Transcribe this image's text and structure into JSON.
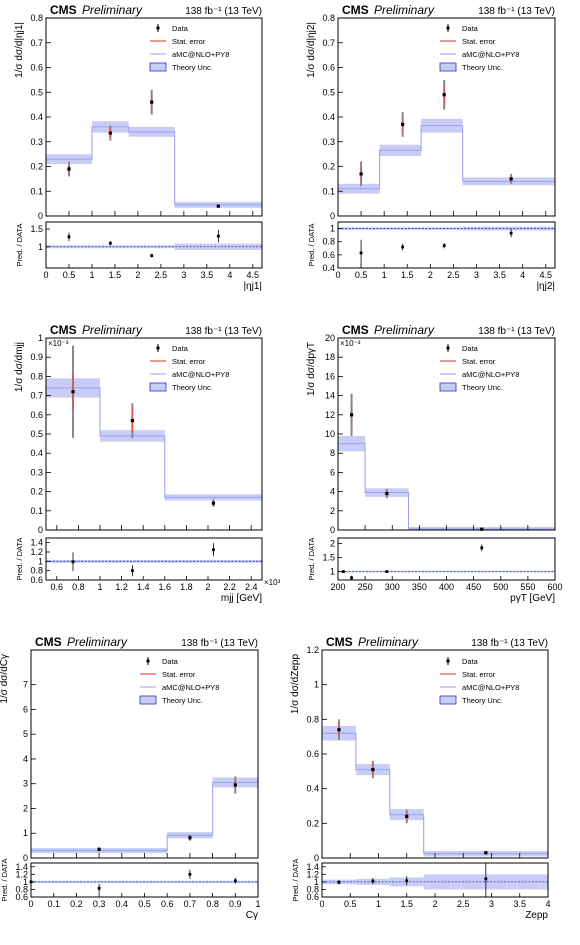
{
  "figure": {
    "header": {
      "experiment": "CMS",
      "status": "Preliminary",
      "lumi": "138 fb⁻¹ (13 TeV)"
    },
    "legend": [
      {
        "label": "Data",
        "style": "data"
      },
      {
        "label": "Stat. error",
        "style": "stat"
      },
      {
        "label": "aMC@NLO+PY8",
        "style": "mc"
      },
      {
        "label": "Theory Unc.",
        "style": "band"
      }
    ],
    "colors": {
      "mc_band": "#c9cdf5",
      "mc_line": "#9aa2ee",
      "stat": "#e05050",
      "syst": "#888888",
      "ratio_line": "#3030c0"
    }
  },
  "chart_data": [
    {
      "type": "histogram",
      "id": "eta_j1",
      "ylabel": "1/σ dσ/d|ηj1|",
      "xlabel": "|ηj1|",
      "ratio_ylabel": "Pred. / DATA",
      "xlim": [
        0,
        4.7
      ],
      "ylim": [
        0,
        0.8
      ],
      "ratio_ylim": [
        0.4,
        1.7
      ],
      "xticks": [
        "0",
        "0.5",
        "1",
        "1.5",
        "2",
        "2.5",
        "3",
        "3.5",
        "4",
        "4.5"
      ],
      "xtick_values": [
        0,
        0.5,
        1,
        1.5,
        2,
        2.5,
        3,
        3.5,
        4,
        4.5
      ],
      "yticks": [
        "0",
        "0.1",
        "0.2",
        "0.3",
        "0.4",
        "0.5",
        "0.6",
        "0.7",
        "0.8"
      ],
      "ytick_values": [
        0,
        0.1,
        0.2,
        0.3,
        0.4,
        0.5,
        0.6,
        0.7,
        0.8
      ],
      "ratio_yticks": [
        "1",
        "1.5"
      ],
      "ratio_ytick_values": [
        1,
        1.5
      ],
      "bin_edges": [
        0,
        1,
        1.8,
        2.8,
        4.7
      ],
      "mc_values": [
        0.23,
        0.36,
        0.34,
        0.045
      ],
      "mc_unc": [
        0.012,
        0.015,
        0.012,
        0.004
      ],
      "data_x": [
        0.5,
        1.4,
        2.3,
        3.75
      ],
      "data_y": [
        0.19,
        0.335,
        0.46,
        0.04
      ],
      "data_stat": [
        0.02,
        0.02,
        0.03,
        0.004
      ],
      "data_syst": [
        0.03,
        0.03,
        0.05,
        0.006
      ],
      "ratio_mc_unc": [
        0.04,
        0.04,
        0.04,
        0.09
      ],
      "ratio_x": [
        0.5,
        1.4,
        2.3,
        3.75
      ],
      "ratio_y": [
        1.28,
        1.1,
        0.75,
        1.3
      ],
      "ratio_err": [
        0.12,
        0.06,
        0.05,
        0.18
      ]
    },
    {
      "type": "histogram",
      "id": "eta_j2",
      "ylabel": "1/σ dσ/d|ηj2|",
      "xlabel": "|ηj2|",
      "ratio_ylabel": "Pred. / DATA",
      "xlim": [
        0,
        4.7
      ],
      "ylim": [
        0,
        0.8
      ],
      "ratio_ylim": [
        0.4,
        1.1
      ],
      "xticks": [
        "0",
        "0.5",
        "1",
        "1.5",
        "2",
        "2.5",
        "3",
        "3.5",
        "4",
        "4.5"
      ],
      "xtick_values": [
        0,
        0.5,
        1,
        1.5,
        2,
        2.5,
        3,
        3.5,
        4,
        4.5
      ],
      "yticks": [
        "0",
        "0.1",
        "0.2",
        "0.3",
        "0.4",
        "0.5",
        "0.6",
        "0.7",
        "0.8"
      ],
      "ytick_values": [
        0,
        0.1,
        0.2,
        0.3,
        0.4,
        0.5,
        0.6,
        0.7,
        0.8
      ],
      "ratio_yticks": [
        "0.4",
        "0.6",
        "0.8",
        "1"
      ],
      "ratio_ytick_values": [
        0.4,
        0.6,
        0.8,
        1
      ],
      "bin_edges": [
        0,
        0.9,
        1.8,
        2.7,
        4.7
      ],
      "mc_values": [
        0.11,
        0.265,
        0.365,
        0.14
      ],
      "mc_unc": [
        0.012,
        0.015,
        0.02,
        0.008
      ],
      "data_x": [
        0.5,
        1.4,
        2.3,
        3.75
      ],
      "data_y": [
        0.17,
        0.37,
        0.49,
        0.15
      ],
      "data_stat": [
        0.03,
        0.03,
        0.04,
        0.01
      ],
      "data_syst": [
        0.05,
        0.05,
        0.06,
        0.02
      ],
      "ratio_mc_unc": [
        0.02,
        0.02,
        0.02,
        0.03
      ],
      "ratio_x": [
        0.5,
        1.4,
        2.3,
        3.75
      ],
      "ratio_y": [
        0.63,
        0.72,
        0.74,
        0.93
      ],
      "ratio_err": [
        0.2,
        0.05,
        0.04,
        0.06
      ]
    },
    {
      "type": "histogram",
      "id": "mjj",
      "ylabel": "1/σ dσ/dmjj",
      "xlabel": "mjj [GeV]",
      "ratio_ylabel": "Pred. / DATA",
      "y_exponent": "×10⁻³",
      "x_exponent": "×10³",
      "xlim": [
        0.5,
        2.5
      ],
      "ylim": [
        0,
        1.0
      ],
      "ratio_ylim": [
        0.6,
        1.5
      ],
      "xticks": [
        "0.6",
        "0.8",
        "1",
        "1.2",
        "1.4",
        "1.6",
        "1.8",
        "2",
        "2.2",
        "2.4"
      ],
      "xtick_values": [
        0.6,
        0.8,
        1,
        1.2,
        1.4,
        1.6,
        1.8,
        2,
        2.2,
        2.4
      ],
      "yticks": [
        "0",
        "0.1",
        "0.2",
        "0.3",
        "0.4",
        "0.5",
        "0.6",
        "0.7",
        "0.8",
        "0.9",
        "1"
      ],
      "ytick_values": [
        0,
        0.1,
        0.2,
        0.3,
        0.4,
        0.5,
        0.6,
        0.7,
        0.8,
        0.9,
        1
      ],
      "ratio_yticks": [
        "0.6",
        "0.8",
        "1",
        "1.2",
        "1.4"
      ],
      "ratio_ytick_values": [
        0.6,
        0.8,
        1,
        1.2,
        1.4
      ],
      "bin_edges": [
        0.5,
        1.0,
        1.6,
        2.5
      ],
      "mc_values": [
        0.74,
        0.49,
        0.17
      ],
      "mc_unc": [
        0.04,
        0.02,
        0.006
      ],
      "data_x": [
        0.75,
        1.3,
        2.05
      ],
      "data_y": [
        0.72,
        0.57,
        0.14
      ],
      "data_stat": [
        0.1,
        0.06,
        0.015
      ],
      "data_syst": [
        0.24,
        0.09,
        0.02
      ],
      "ratio_mc_unc": [
        0.03,
        0.03,
        0.03
      ],
      "ratio_x": [
        0.75,
        1.3,
        2.05
      ],
      "ratio_y": [
        0.99,
        0.8,
        1.25
      ],
      "ratio_err": [
        0.2,
        0.12,
        0.14
      ]
    },
    {
      "type": "histogram",
      "id": "ptgamma",
      "ylabel": "1/σ dσ/dpγT",
      "xlabel": "pγT [GeV]",
      "ratio_ylabel": "Pred. / DATA",
      "y_exponent": "×10⁻³",
      "xlim": [
        200,
        600
      ],
      "ylim": [
        0,
        20
      ],
      "ratio_ylim": [
        0.7,
        2.2
      ],
      "xticks": [
        "200",
        "250",
        "300",
        "350",
        "400",
        "450",
        "500",
        "550",
        "600"
      ],
      "xtick_values": [
        200,
        250,
        300,
        350,
        400,
        450,
        500,
        550,
        600
      ],
      "yticks": [
        "0",
        "2",
        "4",
        "6",
        "8",
        "10",
        "12",
        "14",
        "16",
        "18",
        "20"
      ],
      "ytick_values": [
        0,
        2,
        4,
        6,
        8,
        10,
        12,
        14,
        16,
        18,
        20
      ],
      "ratio_yticks": [
        "1",
        "1.5",
        "2"
      ],
      "ratio_ytick_values": [
        1,
        1.5,
        2
      ],
      "bin_edges": [
        200,
        250,
        330,
        600
      ],
      "mc_values": [
        9.0,
        3.9,
        0.1
      ],
      "mc_unc": [
        0.6,
        0.25,
        0.02
      ],
      "data_x": [
        225,
        290,
        465
      ],
      "data_y": [
        12.0,
        3.8,
        0.08
      ],
      "data_stat": [
        1.0,
        0.3,
        0.02
      ],
      "data_syst": [
        2.2,
        0.5,
        0.03
      ],
      "ratio_mc_unc": [
        0.03,
        0.03,
        0.03
      ],
      "ratio_x": [
        210,
        225,
        290,
        465
      ],
      "ratio_y": [
        1.0,
        0.78,
        1.0,
        1.85
      ],
      "ratio_err": [
        0.05,
        0.07,
        0.05,
        0.12
      ]
    },
    {
      "type": "histogram",
      "id": "cgamma",
      "ylabel": "1/σ dσ/dCγ",
      "xlabel": "Cγ",
      "ratio_ylabel": "Pred. / DATA",
      "xlim": [
        0,
        1
      ],
      "ylim": [
        0,
        8.4
      ],
      "ratio_ylim": [
        0.6,
        1.5
      ],
      "xticks": [
        "0",
        "0.1",
        "0.2",
        "0.3",
        "0.4",
        "0.5",
        "0.6",
        "0.7",
        "0.8",
        "0.9",
        "1"
      ],
      "xtick_values": [
        0,
        0.1,
        0.2,
        0.3,
        0.4,
        0.5,
        0.6,
        0.7,
        0.8,
        0.9,
        1
      ],
      "yticks": [
        "0",
        "1",
        "2",
        "3",
        "4",
        "5",
        "6",
        "7"
      ],
      "ytick_values": [
        0,
        1,
        2,
        3,
        4,
        5,
        6,
        7
      ],
      "ratio_yticks": [
        "0.6",
        "0.8",
        "1",
        "1.2",
        "1.4"
      ],
      "ratio_ytick_values": [
        0.6,
        0.8,
        1,
        1.2,
        1.4
      ],
      "bin_edges": [
        0,
        0.6,
        0.8,
        1.0
      ],
      "mc_values": [
        0.3,
        0.92,
        3.05
      ],
      "mc_unc": [
        0.02,
        0.04,
        0.12
      ],
      "data_x": [
        0.3,
        0.7,
        0.9
      ],
      "data_y": [
        0.35,
        0.82,
        2.95
      ],
      "data_stat": [
        0.05,
        0.08,
        0.2
      ],
      "data_syst": [
        0.08,
        0.12,
        0.35
      ],
      "ratio_mc_unc": [
        0.03,
        0.03,
        0.03
      ],
      "ratio_x": [
        0,
        0.3,
        0.7,
        0.9
      ],
      "ratio_y": [
        1.0,
        0.83,
        1.2,
        1.03
      ],
      "ratio_err": [
        0.05,
        0.12,
        0.12,
        0.08
      ]
    },
    {
      "type": "histogram",
      "id": "zepp",
      "ylabel": "1/σ dσ/dZepp",
      "xlabel": "Zepp",
      "ratio_ylabel": "Pred. / DATA",
      "xlim": [
        0,
        4
      ],
      "ylim": [
        0,
        1.2
      ],
      "ratio_ylim": [
        0.6,
        1.5
      ],
      "xticks": [
        "0",
        "0.5",
        "1",
        "1.5",
        "2",
        "2.5",
        "3",
        "3.5",
        "4"
      ],
      "xtick_values": [
        0,
        0.5,
        1,
        1.5,
        2,
        2.5,
        3,
        3.5,
        4
      ],
      "yticks": [
        "0",
        "0.2",
        "0.4",
        "0.6",
        "0.8",
        "1",
        "1.2"
      ],
      "ytick_values": [
        0,
        0.2,
        0.4,
        0.6,
        0.8,
        1,
        1.2
      ],
      "ratio_yticks": [
        "0.6",
        "0.8",
        "1",
        "1.2",
        "1.4"
      ],
      "ratio_ytick_values": [
        0.6,
        0.8,
        1,
        1.2,
        1.4
      ],
      "bin_edges": [
        0,
        0.6,
        1.2,
        1.8,
        4.0
      ],
      "mc_values": [
        0.72,
        0.51,
        0.25,
        0.025
      ],
      "mc_unc": [
        0.03,
        0.02,
        0.02,
        0.004
      ],
      "data_x": [
        0.3,
        0.9,
        1.5,
        2.9
      ],
      "data_y": [
        0.74,
        0.51,
        0.24,
        0.03
      ],
      "data_stat": [
        0.04,
        0.03,
        0.02,
        0.004
      ],
      "data_syst": [
        0.06,
        0.05,
        0.04,
        0.008
      ],
      "ratio_mc_unc": [
        0.06,
        0.08,
        0.12,
        0.2
      ],
      "ratio_x": [
        0.3,
        0.9,
        1.5,
        2.9
      ],
      "ratio_y": [
        0.99,
        1.02,
        1.03,
        1.08
      ],
      "ratio_err": [
        0.06,
        0.08,
        0.12,
        0.5
      ]
    }
  ]
}
